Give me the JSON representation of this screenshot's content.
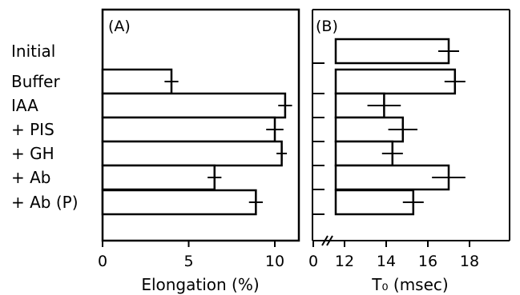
{
  "chart_data": [
    {
      "type": "bar",
      "orientation": "horizontal",
      "panel_label": "(A)",
      "categories": [
        "Initial",
        "Buffer",
        "IAA",
        "+ PIS",
        "+ GH",
        "+ Ab",
        "+ Ab (P)"
      ],
      "values": [
        null,
        4.0,
        10.6,
        10.0,
        10.4,
        6.5,
        8.9
      ],
      "errors": [
        null,
        0.4,
        0.4,
        0.5,
        0.3,
        0.4,
        0.4
      ],
      "xlabel": "Elongation (%)",
      "xticks": [
        "0",
        "5",
        "10"
      ],
      "xlim": [
        0,
        11.2
      ]
    },
    {
      "type": "bar",
      "orientation": "horizontal",
      "panel_label": "(B)",
      "categories": [
        "Initial",
        "Buffer",
        "IAA",
        "+ PIS",
        "+ GH",
        "+ Ab",
        "+ Ab (P)"
      ],
      "values": [
        17.0,
        17.3,
        13.9,
        14.8,
        14.3,
        17.0,
        15.3
      ],
      "errors": [
        0.5,
        0.5,
        0.8,
        0.7,
        0.5,
        0.8,
        0.5
      ],
      "xlabel": "T₀ (msec)",
      "xticks": [
        "0",
        "12",
        "14",
        "16",
        "18"
      ],
      "axis_break": true,
      "xlim_broken": [
        10.8,
        18.8
      ]
    }
  ]
}
